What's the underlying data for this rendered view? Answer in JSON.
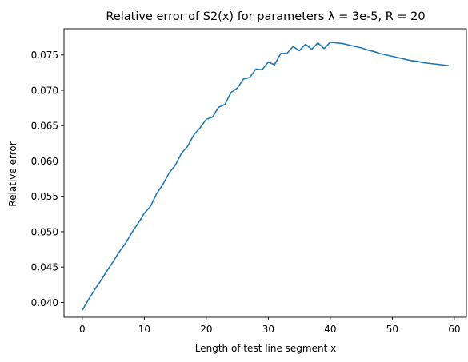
{
  "chart_data": {
    "type": "line",
    "title": "Relative error of S2(x) for parameters λ = 3e-5, R = 20",
    "xlabel": "Length of test line segment x",
    "ylabel": "Relative error",
    "xlim": [
      -2.95,
      61.95
    ],
    "ylim": [
      0.0379,
      0.0787
    ],
    "xticks": [
      0,
      10,
      20,
      30,
      40,
      50,
      60
    ],
    "yticks": [
      0.04,
      0.045,
      0.05,
      0.055,
      0.06,
      0.065,
      0.07,
      0.075
    ],
    "xtick_labels": [
      "0",
      "10",
      "20",
      "30",
      "40",
      "50",
      "60"
    ],
    "ytick_labels": [
      "0.040",
      "0.045",
      "0.050",
      "0.055",
      "0.060",
      "0.065",
      "0.070",
      "0.075"
    ],
    "grid": false,
    "line_color": "#1f77b4",
    "series": [
      {
        "x": [
          0,
          1,
          2,
          3,
          4,
          5,
          6,
          7,
          8,
          9,
          10,
          11,
          12,
          13,
          14,
          15,
          16,
          17,
          18,
          19,
          20,
          21,
          22,
          23,
          24,
          25,
          26,
          27,
          28,
          29,
          30,
          31,
          32,
          33,
          34,
          35,
          36,
          37,
          38,
          39,
          40,
          41,
          42,
          43,
          44,
          45,
          46,
          47,
          48,
          49,
          50,
          51,
          52,
          53,
          54,
          55,
          56,
          57,
          58,
          59
        ],
        "values": [
          0.0389,
          0.0404,
          0.0418,
          0.0431,
          0.0445,
          0.0458,
          0.0472,
          0.0484,
          0.0499,
          0.0512,
          0.0526,
          0.0536,
          0.0554,
          0.0567,
          0.0583,
          0.0594,
          0.0611,
          0.0621,
          0.0637,
          0.0647,
          0.0659,
          0.0662,
          0.0676,
          0.068,
          0.0697,
          0.0703,
          0.0716,
          0.0718,
          0.073,
          0.0729,
          0.074,
          0.0736,
          0.0752,
          0.0752,
          0.0762,
          0.0756,
          0.0765,
          0.0758,
          0.0767,
          0.0759,
          0.0768,
          0.0767,
          0.0766,
          0.0764,
          0.0762,
          0.076,
          0.0757,
          0.0755,
          0.0752,
          0.075,
          0.0748,
          0.0746,
          0.0744,
          0.0742,
          0.0741,
          0.0739,
          0.0738,
          0.0737,
          0.0736,
          0.0735
        ]
      }
    ]
  }
}
